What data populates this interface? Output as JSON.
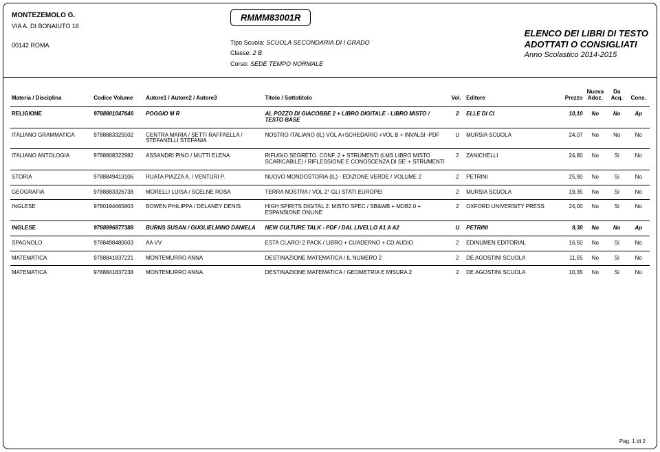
{
  "school": {
    "name": "MONTEZEMOLO G.",
    "address1": "VIA A. DI BONAIUTO 16",
    "address2": "00142  ROMA"
  },
  "docCode": "RMMM83001R",
  "meta": {
    "tipoLabel": "Tipo Scuola:",
    "tipoValue": "SCUOLA SECONDARIA DI I GRADO",
    "classeLabel": "Classe:",
    "classeValue": "2 B",
    "corsoLabel": "Corso:",
    "corsoValue": "SEDE TEMPO NORMALE"
  },
  "titleBlock": {
    "line1": "ELENCO DEI LIBRI DI TESTO",
    "line2": "ADOTTATI O CONSIGLIATI",
    "year": "Anno Scolastico 2014-2015"
  },
  "columns": {
    "materia": "Materia / Disciplina",
    "codice": "Codice Volume",
    "autore": "Autore1 / Autore2 / Autore3",
    "titolo": "Titolo / Sottotitolo",
    "vol": "Vol.",
    "editore": "Editore",
    "prezzo": "Prezzo",
    "nuova": "Nuova Adoz.",
    "da": "Da Acq.",
    "cons": "Cons."
  },
  "rows": [
    {
      "bold": true,
      "materia": "RELIGIONE",
      "codice": "9788801047646",
      "autore": "POGGIO M R",
      "titolo": "AL POZZO DI GIACOBBE 2 + LIBRO DIGITALE - LIBRO MISTO / TESTO BASE",
      "vol": "2",
      "editore": "ELLE DI CI",
      "prezzo": "10,10",
      "nuova": "No",
      "da": "No",
      "cons": "Ap"
    },
    {
      "bold": false,
      "materia": "ITALIANO GRAMMATICA",
      "codice": "9788883325502",
      "autore": "CENTRA MARIA / SETTI RAFFAELLA / STEFANELLI STEFANIA",
      "titolo": "NOSTRO ITALIANO (IL) VOL A+SCHEDARIO +VOL B + INVALSI -PDF",
      "vol": "U",
      "editore": "MURSIA SCUOLA",
      "prezzo": "24,07",
      "nuova": "No",
      "da": "No",
      "cons": "No"
    },
    {
      "bold": false,
      "materia": "ITALIANO ANTOLOGIA",
      "codice": "9788808322982",
      "autore": "ASSANDRI PINO / MUTTI ELENA",
      "titolo": "RIFUGIO SEGRETO. CONF. 2 + STRUMENTI (LMS LIBRO MISTO SCARICABILE) / RIFLESSIONE E CONOSCENZA DI SE' + STRUMENTI",
      "vol": "2",
      "editore": "ZANICHELLI",
      "prezzo": "24,80",
      "nuova": "No",
      "da": "Si",
      "cons": "No"
    },
    {
      "bold": false,
      "materia": "STORIA",
      "codice": "9788849413106",
      "autore": "RUATA PIAZZA A. / VENTURI P.",
      "titolo": "NUOVO MONDOSTORIA (IL) - EDIZIONE VERDE / VOLUME 2",
      "vol": "2",
      "editore": "PETRINI",
      "prezzo": "25,90",
      "nuova": "No",
      "da": "Si",
      "cons": "No"
    },
    {
      "bold": false,
      "materia": "GEOGRAFIA",
      "codice": "9788883326738",
      "autore": "MORELLI LUISA / SCELNE ROSA",
      "titolo": "TERRA NOSTRA / VOL 2° GLI STATI EUROPEI",
      "vol": "2",
      "editore": "MURSIA SCUOLA",
      "prezzo": "19,35",
      "nuova": "No",
      "da": "Si",
      "cons": "No"
    },
    {
      "bold": false,
      "materia": "INGLESE",
      "codice": "9780194665803",
      "autore": "BOWEN PHILIPPA / DELANEY DENIS",
      "titolo": "HIGH SPIRITS DIGITAL 2: MISTO SPEC / SB&WB + MDB2.0 + ESPANSIONE ONLINE",
      "vol": "2",
      "editore": "OXFORD UNIVERSITY PRESS",
      "prezzo": "24,00",
      "nuova": "No",
      "da": "Si",
      "cons": "No"
    },
    {
      "bold": true,
      "materia": "INGLESE",
      "codice": "9788896877388",
      "autore": "BURNS SUSAN / GUGLIELMINO DANIELA",
      "titolo": "NEW CULTURE TALK - PDF / DAL LIVELLO A1 A A2",
      "vol": "U",
      "editore": "PETRINI",
      "prezzo": "9,30",
      "nuova": "No",
      "da": "No",
      "cons": "Ap"
    },
    {
      "bold": false,
      "materia": "SPAGNOLO",
      "codice": "9788498480603",
      "autore": "AA VV",
      "titolo": "ESTA CLARO! 2 PACK / LIBRO + CUADERNO + CD AUDIO",
      "vol": "2",
      "editore": "EDINUMEN EDITORIAL",
      "prezzo": "16,50",
      "nuova": "No",
      "da": "Si",
      "cons": "No"
    },
    {
      "bold": false,
      "materia": "MATEMATICA",
      "codice": "9788841837221",
      "autore": "MONTEMURRO ANNA",
      "titolo": "DESTINAZIONE MATEMATICA / IL NUMERO 2",
      "vol": "2",
      "editore": "DE AGOSTINI SCUOLA",
      "prezzo": "11,55",
      "nuova": "No",
      "da": "Si",
      "cons": "No"
    },
    {
      "bold": false,
      "materia": "MATEMATICA",
      "codice": "9788841837238",
      "autore": "MONTEMURRO ANNA",
      "titolo": "DESTINAZIONE MATEMATICA / GEOMETRIA E MISURA 2",
      "vol": "2",
      "editore": "DE AGOSTINI SCUOLA",
      "prezzo": "10,35",
      "nuova": "No",
      "da": "Si",
      "cons": "No"
    }
  ],
  "footer": "Pag. 1 di 2"
}
